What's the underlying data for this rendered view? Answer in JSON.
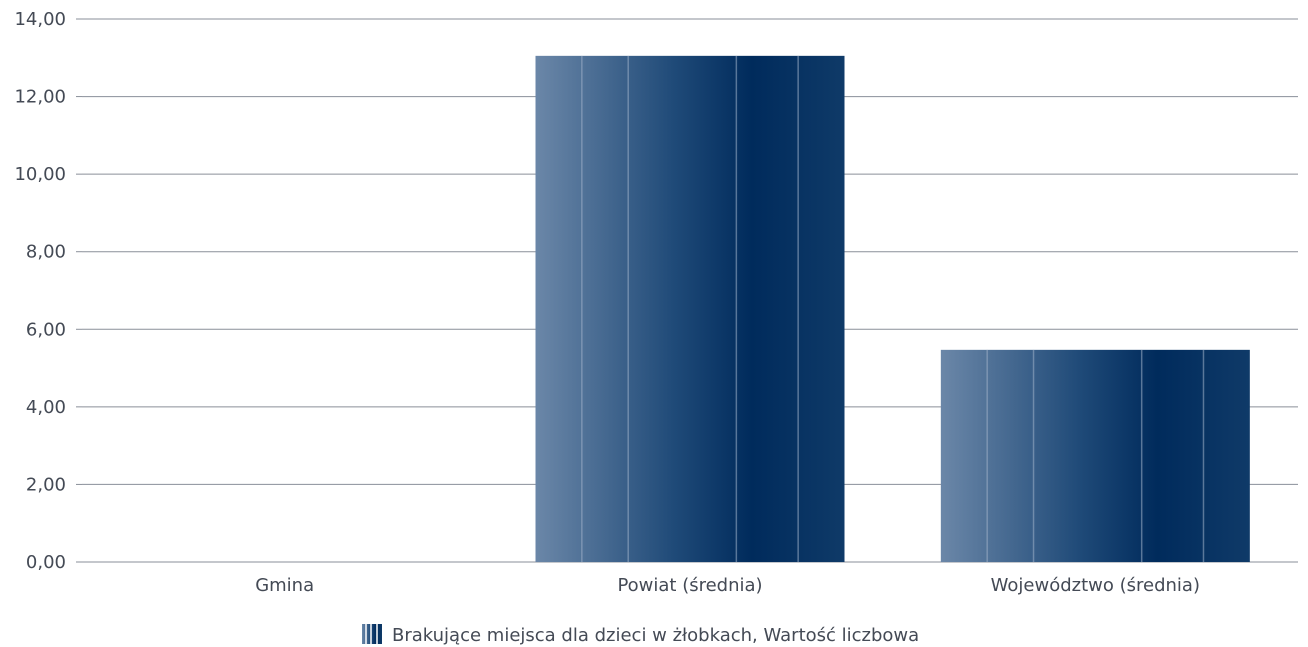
{
  "chart_data": {
    "type": "bar",
    "categories": [
      "Gmina",
      "Powiat (średnia)",
      "Województwo (średnia)"
    ],
    "series": [
      {
        "name": "Brakujące miejsca dla dzieci w żłobkach, Wartość liczbowa",
        "values": [
          0,
          13.05,
          5.47
        ]
      }
    ],
    "ylim": [
      0,
      14
    ],
    "yticks": [
      "0,00",
      "2,00",
      "4,00",
      "6,00",
      "8,00",
      "10,00",
      "12,00",
      "14,00"
    ],
    "grid": true,
    "legend_position": "bottom-center",
    "colors": {
      "bar_dark": "#002b5c",
      "bar_light": "#6b87a8",
      "gridline": "#8a8f99",
      "text": "#444a55"
    }
  }
}
